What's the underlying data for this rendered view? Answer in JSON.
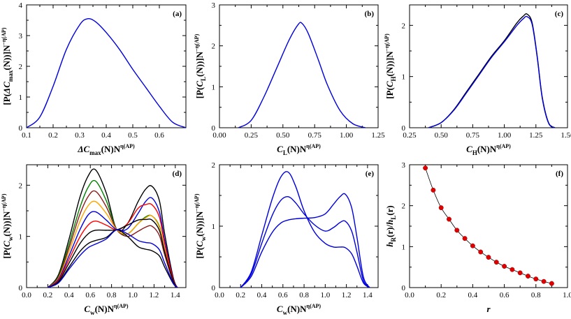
{
  "chart_data": [
    {
      "panel": "(a)",
      "type": "line",
      "xlabel": {
        "main": "ΔC",
        "sub": "max",
        "rest": "(N)N",
        "sup": "η(AP)"
      },
      "ylabel": {
        "main": "[P(ΔC",
        "sub": "max",
        "rest": "(N))]N",
        "sup": "−η(AP)"
      },
      "xlim": [
        0.1,
        0.7
      ],
      "ylim": [
        0,
        4
      ],
      "xticks": [
        0.1,
        0.2,
        0.3,
        0.4,
        0.5,
        0.6
      ],
      "xtick_labels": [
        "0.1",
        "0.2",
        "0.3",
        "0.4",
        "0.5",
        "0.6"
      ],
      "yticks": [
        0,
        1,
        2,
        3,
        4
      ],
      "ytick_labels": [
        "0",
        "1",
        "2",
        "3",
        "4"
      ],
      "series": [
        {
          "color": "#0000dd",
          "x": [
            0.1,
            0.15,
            0.2,
            0.25,
            0.3,
            0.33,
            0.36,
            0.4,
            0.45,
            0.5,
            0.55,
            0.6,
            0.65,
            0.7
          ],
          "y": [
            0.0,
            0.35,
            1.35,
            2.55,
            3.35,
            3.55,
            3.45,
            3.1,
            2.55,
            1.9,
            1.3,
            0.7,
            0.18,
            0.0
          ]
        }
      ]
    },
    {
      "panel": "(b)",
      "type": "line",
      "xlabel": {
        "main": "C",
        "sub": "L",
        "rest": "(N)N",
        "sup": "η(AP)"
      },
      "ylabel": {
        "main": "[P(C",
        "sub": "L",
        "rest": "(N))]N",
        "sup": "−η(AP)"
      },
      "xlim": [
        0,
        1.25
      ],
      "ylim": [
        0,
        3
      ],
      "xticks": [
        0,
        0.25,
        0.5,
        0.75,
        1,
        1.25
      ],
      "xtick_labels": [
        "0.00",
        "0.25",
        "0.50",
        "0.75",
        "1.00",
        "1.25"
      ],
      "yticks": [
        0,
        1,
        2,
        3
      ],
      "ytick_labels": [
        "0",
        "1",
        "2",
        "3"
      ],
      "series": [
        {
          "color": "#0000dd",
          "x": [
            0.15,
            0.25,
            0.35,
            0.45,
            0.55,
            0.62,
            0.65,
            0.7,
            0.78,
            0.85,
            0.95,
            1.05,
            1.15
          ],
          "y": [
            0.0,
            0.18,
            0.75,
            1.45,
            2.15,
            2.52,
            2.55,
            2.3,
            1.65,
            1.05,
            0.42,
            0.1,
            0.0
          ]
        }
      ]
    },
    {
      "panel": "(c)",
      "type": "line",
      "xlabel": {
        "main": "C",
        "sub": "H",
        "rest": "(N)N",
        "sup": "η(AP)"
      },
      "ylabel": {
        "main": "[P(C",
        "sub": "H",
        "rest": "(N))]N",
        "sup": "−η(AP)"
      },
      "xlim": [
        0.25,
        1.5
      ],
      "ylim": [
        0,
        2.4
      ],
      "xticks": [
        0.25,
        0.5,
        0.75,
        1,
        1.25,
        1.5
      ],
      "xtick_labels": [
        "0.25",
        "0.50",
        "0.75",
        "1.00",
        "1.25",
        "1.50"
      ],
      "yticks": [
        0,
        1,
        2
      ],
      "ytick_labels": [
        "0",
        "1",
        "2"
      ],
      "series": [
        {
          "color": "#000000",
          "x": [
            0.4,
            0.5,
            0.6,
            0.7,
            0.8,
            0.9,
            1.0,
            1.1,
            1.15,
            1.18,
            1.22,
            1.26,
            1.3,
            1.35,
            1.4
          ],
          "y": [
            0.0,
            0.1,
            0.35,
            0.7,
            1.05,
            1.4,
            1.7,
            2.05,
            2.18,
            2.22,
            2.05,
            1.4,
            0.6,
            0.1,
            0.0
          ]
        },
        {
          "color": "#0000dd",
          "x": [
            0.4,
            0.5,
            0.6,
            0.7,
            0.8,
            0.9,
            1.0,
            1.1,
            1.15,
            1.18,
            1.22,
            1.26,
            1.3,
            1.35,
            1.4
          ],
          "y": [
            0.0,
            0.1,
            0.34,
            0.68,
            1.03,
            1.38,
            1.68,
            2.0,
            2.13,
            2.17,
            2.02,
            1.38,
            0.58,
            0.09,
            0.0
          ]
        }
      ]
    },
    {
      "panel": "(d)",
      "type": "line",
      "xlabel": {
        "main": "C",
        "sub": "w",
        "rest": "(N)N",
        "sup": "η(AP)"
      },
      "ylabel": {
        "main": "[P(C",
        "sub": "w",
        "rest": "(N))]N",
        "sup": "−η(AP)"
      },
      "xlim": [
        0,
        1.5
      ],
      "ylim": [
        0,
        2.4
      ],
      "xticks": [
        0,
        0.2,
        0.4,
        0.6,
        0.8,
        1.0,
        1.2,
        1.4
      ],
      "xtick_labels": [
        "0.0",
        "0.2",
        "0.4",
        "0.6",
        "0.8",
        "1.0",
        "1.2",
        "1.4"
      ],
      "yticks": [
        0,
        1,
        2
      ],
      "ytick_labels": [
        "0",
        "1",
        "2"
      ],
      "series": [
        {
          "color": "#000000",
          "x": [
            0.2,
            0.3,
            0.4,
            0.5,
            0.58,
            0.65,
            0.75,
            0.85,
            0.95,
            1.05,
            1.12,
            1.18,
            1.25,
            1.3,
            1.38,
            1.42
          ],
          "y": [
            0.0,
            0.25,
            0.95,
            1.75,
            2.18,
            2.3,
            1.85,
            1.13,
            1.25,
            1.68,
            1.92,
            1.98,
            1.7,
            1.05,
            0.2,
            0.0
          ]
        },
        {
          "color": "#008000",
          "x": [
            0.2,
            0.3,
            0.4,
            0.5,
            0.58,
            0.65,
            0.75,
            0.85,
            0.95,
            1.05,
            1.12,
            1.18,
            1.25,
            1.3,
            1.38,
            1.42
          ],
          "y": [
            0.0,
            0.22,
            0.85,
            1.55,
            1.96,
            2.08,
            1.7,
            1.13,
            1.05,
            1.25,
            1.38,
            1.4,
            1.2,
            0.75,
            0.15,
            0.0
          ]
        },
        {
          "color": "#8b1a1a",
          "x": [
            0.2,
            0.3,
            0.4,
            0.5,
            0.58,
            0.65,
            0.75,
            0.85,
            0.95,
            1.05,
            1.12,
            1.18,
            1.25,
            1.3,
            1.38,
            1.42
          ],
          "y": [
            0.0,
            0.2,
            0.78,
            1.42,
            1.78,
            1.88,
            1.58,
            1.13,
            1.0,
            1.1,
            1.18,
            1.2,
            1.02,
            0.64,
            0.12,
            0.0
          ]
        },
        {
          "color": "#ffa500",
          "x": [
            0.2,
            0.3,
            0.4,
            0.5,
            0.58,
            0.65,
            0.75,
            0.85,
            0.95,
            1.05,
            1.12,
            1.18,
            1.25,
            1.3,
            1.38,
            1.42
          ],
          "y": [
            0.0,
            0.18,
            0.7,
            1.28,
            1.6,
            1.68,
            1.45,
            1.13,
            1.05,
            1.25,
            1.36,
            1.4,
            1.18,
            0.74,
            0.14,
            0.0
          ]
        },
        {
          "color": "#0000dd",
          "x": [
            0.2,
            0.3,
            0.4,
            0.5,
            0.58,
            0.65,
            0.75,
            0.85,
            0.95,
            1.05,
            1.12,
            1.18,
            1.25,
            1.3,
            1.38,
            1.42
          ],
          "y": [
            0.0,
            0.16,
            0.62,
            1.12,
            1.42,
            1.48,
            1.32,
            1.13,
            1.15,
            1.45,
            1.68,
            1.75,
            1.48,
            0.92,
            0.17,
            0.0
          ]
        },
        {
          "color": "#ff0000",
          "x": [
            0.2,
            0.3,
            0.4,
            0.5,
            0.58,
            0.65,
            0.75,
            0.85,
            0.95,
            1.05,
            1.12,
            1.18,
            1.25,
            1.3,
            1.38,
            1.42
          ],
          "y": [
            0.0,
            0.14,
            0.55,
            0.98,
            1.22,
            1.3,
            1.22,
            1.13,
            1.25,
            1.55,
            1.62,
            1.62,
            1.38,
            0.86,
            0.16,
            0.0
          ]
        },
        {
          "color": "#000000",
          "x": [
            0.2,
            0.3,
            0.4,
            0.5,
            0.58,
            0.65,
            0.75,
            0.85,
            0.95,
            1.05,
            1.12,
            1.18,
            1.25,
            1.3,
            1.38,
            1.42
          ],
          "y": [
            0.0,
            0.12,
            0.48,
            0.85,
            1.05,
            1.12,
            1.12,
            1.13,
            1.22,
            1.32,
            1.33,
            1.32,
            1.12,
            0.7,
            0.13,
            0.0
          ]
        },
        {
          "color": "#000000",
          "x": [
            0.2,
            0.3,
            0.4,
            0.5,
            0.58,
            0.65,
            0.75,
            0.85,
            0.95,
            1.05,
            1.12,
            1.18,
            1.25,
            1.3,
            1.38,
            1.42
          ],
          "y": [
            0.0,
            0.1,
            0.4,
            0.7,
            0.86,
            0.92,
            0.98,
            1.13,
            1.0,
            0.8,
            0.75,
            0.72,
            0.62,
            0.4,
            0.08,
            0.0
          ]
        },
        {
          "color": "#0000dd",
          "x": [
            0.2,
            0.3,
            0.4,
            0.5,
            0.58,
            0.65,
            0.75,
            0.85,
            0.95,
            1.05,
            1.12,
            1.18,
            1.25,
            1.3,
            1.38,
            1.42
          ],
          "y": [
            0.0,
            0.09,
            0.36,
            0.62,
            0.78,
            0.85,
            0.95,
            1.13,
            1.05,
            0.92,
            0.88,
            0.86,
            0.74,
            0.48,
            0.09,
            0.0
          ]
        }
      ]
    },
    {
      "panel": "(e)",
      "type": "line",
      "xlabel": {
        "main": "C",
        "sub": "w",
        "rest": "(N)N",
        "sup": "η(AP)"
      },
      "ylabel": {
        "main": "[P(C",
        "sub": "w",
        "rest": "(N))]N",
        "sup": "−η(AP)"
      },
      "xlim": [
        0,
        1.5
      ],
      "ylim": [
        0,
        2
      ],
      "xticks": [
        0,
        0.2,
        0.4,
        0.6,
        0.8,
        1.0,
        1.2,
        1.4
      ],
      "xtick_labels": [
        "0.0",
        "0.2",
        "0.4",
        "0.6",
        "0.8",
        "1.0",
        "1.2",
        "1.4"
      ],
      "yticks": [
        0,
        1,
        2
      ],
      "ytick_labels": [
        "0",
        "1",
        "2"
      ],
      "series": [
        {
          "color": "#0000dd",
          "x": [
            0.2,
            0.3,
            0.4,
            0.5,
            0.58,
            0.65,
            0.72,
            0.8,
            0.9,
            1.0,
            1.08,
            1.14,
            1.19,
            1.25,
            1.3,
            1.36,
            1.42
          ],
          "y": [
            0.0,
            0.25,
            0.85,
            1.45,
            1.8,
            1.88,
            1.65,
            1.25,
            0.9,
            0.72,
            0.66,
            0.66,
            0.65,
            0.55,
            0.35,
            0.08,
            0.0
          ]
        },
        {
          "color": "#0000dd",
          "x": [
            0.2,
            0.3,
            0.4,
            0.5,
            0.58,
            0.65,
            0.72,
            0.8,
            0.9,
            1.0,
            1.08,
            1.14,
            1.19,
            1.25,
            1.3,
            1.36,
            1.42
          ],
          "y": [
            0.0,
            0.22,
            0.72,
            1.18,
            1.42,
            1.48,
            1.38,
            1.2,
            1.02,
            0.92,
            0.98,
            1.06,
            1.08,
            0.92,
            0.58,
            0.12,
            0.0
          ]
        },
        {
          "color": "#0000dd",
          "x": [
            0.2,
            0.3,
            0.4,
            0.5,
            0.58,
            0.65,
            0.72,
            0.8,
            0.9,
            1.0,
            1.08,
            1.14,
            1.19,
            1.25,
            1.3,
            1.36,
            1.42
          ],
          "y": [
            0.0,
            0.18,
            0.58,
            0.9,
            1.05,
            1.1,
            1.12,
            1.13,
            1.14,
            1.2,
            1.36,
            1.48,
            1.52,
            1.3,
            0.82,
            0.18,
            0.0
          ]
        }
      ]
    },
    {
      "panel": "(f)",
      "type": "scatter",
      "xlabel": {
        "main": "r"
      },
      "ylabel": {
        "main": "h",
        "sub": "R",
        "mid": "(r)/h",
        "sub2": "L",
        "rest": "(r)"
      },
      "xlim": [
        0,
        1
      ],
      "ylim": [
        0,
        3
      ],
      "xticks": [
        0,
        0.2,
        0.4,
        0.6,
        0.8,
        1.0
      ],
      "xtick_labels": [
        "0.0",
        "0.2",
        "0.4",
        "0.6",
        "0.8",
        "1.0"
      ],
      "yticks": [
        0,
        1,
        2,
        3
      ],
      "ytick_labels": [
        "0",
        "1",
        "2",
        "3"
      ],
      "points_color": "#e00000",
      "line_color": "#000000",
      "x": [
        0.1,
        0.15,
        0.2,
        0.25,
        0.3,
        0.35,
        0.4,
        0.45,
        0.5,
        0.55,
        0.6,
        0.65,
        0.7,
        0.75,
        0.8,
        0.85,
        0.9
      ],
      "y": [
        2.92,
        2.38,
        1.95,
        1.67,
        1.4,
        1.2,
        1.02,
        0.87,
        0.74,
        0.62,
        0.52,
        0.44,
        0.36,
        0.28,
        0.21,
        0.15,
        0.1
      ]
    }
  ]
}
